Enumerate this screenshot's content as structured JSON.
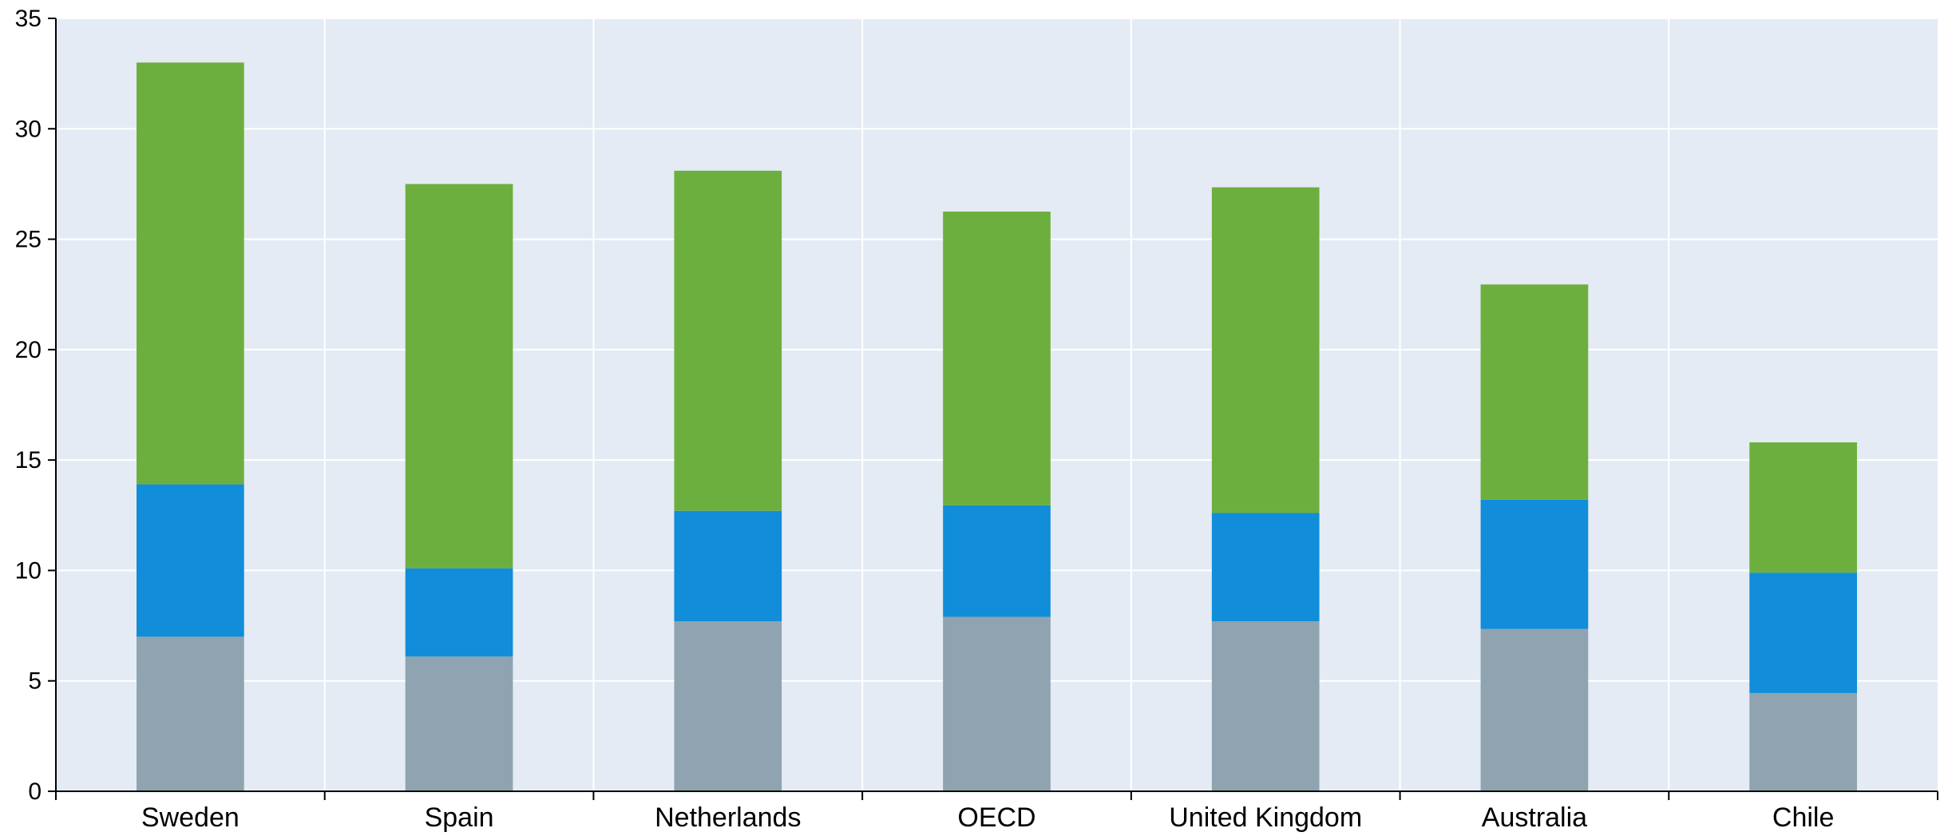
{
  "chart_data": {
    "type": "bar",
    "stacked": true,
    "categories": [
      "Sweden",
      "Spain",
      "Netherlands",
      "OECD",
      "United Kingdom",
      "Australia",
      "Chile"
    ],
    "series": [
      {
        "values": [
          7.0,
          6.1,
          7.7,
          7.9,
          7.7,
          7.35,
          4.45
        ],
        "color": "#8FA4B0"
      },
      {
        "values": [
          6.9,
          4.0,
          5.0,
          5.05,
          4.9,
          5.85,
          5.45
        ],
        "color": "#118DD9"
      },
      {
        "values": [
          19.1,
          17.4,
          15.4,
          13.3,
          14.75,
          9.75,
          5.9
        ],
        "color": "#6DAF3F"
      }
    ],
    "ylim": [
      0,
      35
    ],
    "yticks": [
      "0",
      "5",
      "10",
      "15",
      "20",
      "25",
      "30",
      "35"
    ],
    "xlabel": "",
    "ylabel": "",
    "grid": true,
    "colors": {
      "plot_background": "#E4EBF4",
      "gridline": "#FFFFFF",
      "axis": "#000000"
    }
  }
}
